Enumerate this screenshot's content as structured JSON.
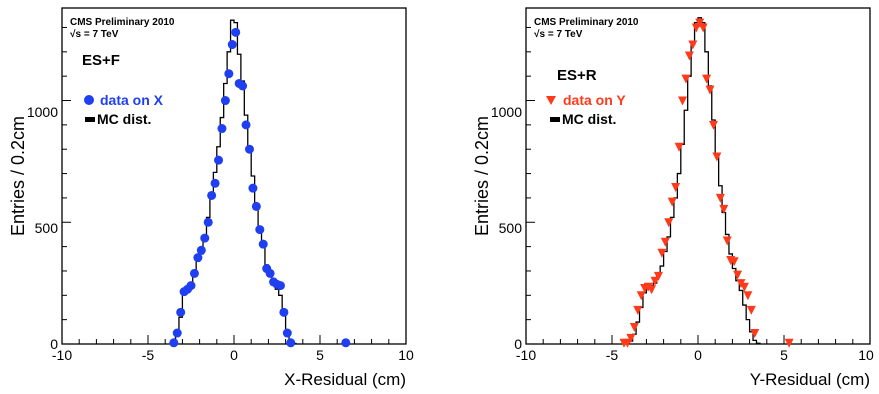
{
  "chart_data": [
    {
      "type": "scatter",
      "ylabel": "Entries / 0.2cm",
      "xlabel": "X-Residual (cm)",
      "xlim": [
        -10,
        10
      ],
      "ylim": [
        0,
        1380
      ],
      "x_ticks": [
        "-10",
        "-5",
        "0",
        "5",
        "10"
      ],
      "y_ticks": [
        "0",
        "500",
        "1000"
      ],
      "annotation_line1": "CMS Preliminary 2010",
      "annotation_line2": "√s = 7 TeV",
      "legend_title": "ES+F",
      "legend_placement": "top-left",
      "grid": false,
      "series": [
        {
          "name": "data on X",
          "kind": "markers",
          "marker": "circle",
          "color": "#1f3ff0",
          "x": [
            -3.5,
            -3.3,
            -3.1,
            -2.9,
            -2.7,
            -2.5,
            -2.3,
            -2.1,
            -1.9,
            -1.7,
            -1.5,
            -1.3,
            -1.1,
            -0.9,
            -0.7,
            -0.5,
            -0.3,
            -0.1,
            0.1,
            0.3,
            0.5,
            0.7,
            0.9,
            1.1,
            1.3,
            1.5,
            1.7,
            1.9,
            2.1,
            2.3,
            2.5,
            2.7,
            2.9,
            3.1,
            3.3,
            6.5
          ],
          "y": [
            5,
            45,
            130,
            215,
            225,
            240,
            290,
            355,
            385,
            435,
            500,
            610,
            660,
            755,
            885,
            1000,
            1110,
            1230,
            1280,
            1070,
            1060,
            900,
            800,
            640,
            565,
            470,
            410,
            310,
            290,
            255,
            245,
            240,
            130,
            45,
            5,
            5
          ]
        },
        {
          "name": "MC dist.",
          "kind": "step",
          "color": "#000000",
          "edges": [
            -3.6,
            -3.4,
            -3.2,
            -3.0,
            -2.8,
            -2.6,
            -2.4,
            -2.2,
            -2.0,
            -1.8,
            -1.6,
            -1.4,
            -1.2,
            -1.0,
            -0.8,
            -0.6,
            -0.4,
            -0.2,
            0.0,
            0.2,
            0.4,
            0.6,
            0.8,
            1.0,
            1.2,
            1.4,
            1.6,
            1.8,
            2.0,
            2.2,
            2.4,
            2.6,
            2.8,
            3.0,
            3.2,
            3.4,
            3.6
          ],
          "values": [
            5,
            40,
            110,
            205,
            215,
            240,
            285,
            340,
            370,
            430,
            520,
            610,
            705,
            810,
            930,
            1070,
            1200,
            1330,
            1320,
            1190,
            1080,
            940,
            810,
            690,
            575,
            480,
            400,
            325,
            280,
            250,
            225,
            200,
            120,
            45,
            10,
            2
          ]
        }
      ]
    },
    {
      "type": "scatter",
      "ylabel": "Entries / 0.2cm",
      "xlabel": "Y-Residual (cm)",
      "xlim": [
        -10,
        10
      ],
      "ylim": [
        0,
        1380
      ],
      "x_ticks": [
        "-10",
        "-5",
        "0",
        "5",
        "10"
      ],
      "y_ticks": [
        "0",
        "500",
        "1000"
      ],
      "annotation_line1": "CMS Preliminary 2010",
      "annotation_line2": "√s = 7 TeV",
      "legend_title": "ES+R",
      "legend_placement": "top-left",
      "grid": false,
      "series": [
        {
          "name": "data on Y",
          "kind": "markers",
          "marker": "triangle-down",
          "color": "#ff3a1a",
          "x": [
            -4.3,
            -4.1,
            -3.9,
            -3.7,
            -3.5,
            -3.3,
            -3.1,
            -2.9,
            -2.7,
            -2.5,
            -2.3,
            -2.1,
            -1.9,
            -1.7,
            -1.5,
            -1.3,
            -1.1,
            -0.9,
            -0.7,
            -0.5,
            -0.3,
            -0.1,
            0.1,
            0.3,
            0.5,
            0.7,
            0.9,
            1.1,
            1.3,
            1.5,
            1.7,
            1.9,
            2.1,
            2.3,
            2.5,
            2.7,
            2.9,
            3.1,
            3.3,
            5.3
          ],
          "y": [
            5,
            5,
            25,
            70,
            140,
            200,
            230,
            235,
            225,
            260,
            280,
            375,
            420,
            500,
            585,
            645,
            810,
            1000,
            1090,
            1185,
            1230,
            1300,
            1320,
            1300,
            1090,
            1045,
            900,
            770,
            600,
            555,
            425,
            345,
            340,
            285,
            250,
            235,
            200,
            140,
            45,
            5
          ]
        },
        {
          "name": "MC dist.",
          "kind": "step",
          "color": "#000000",
          "edges": [
            -4.2,
            -4.0,
            -3.8,
            -3.6,
            -3.4,
            -3.2,
            -3.0,
            -2.8,
            -2.6,
            -2.4,
            -2.2,
            -2.0,
            -1.8,
            -1.6,
            -1.4,
            -1.2,
            -1.0,
            -0.8,
            -0.6,
            -0.4,
            -0.2,
            0.0,
            0.2,
            0.4,
            0.6,
            0.8,
            1.0,
            1.2,
            1.4,
            1.6,
            1.8,
            2.0,
            2.2,
            2.4,
            2.6,
            2.8,
            3.0,
            3.2,
            3.4,
            3.6
          ],
          "values": [
            3,
            12,
            40,
            90,
            150,
            210,
            235,
            240,
            250,
            280,
            320,
            380,
            440,
            520,
            600,
            700,
            820,
            960,
            1100,
            1230,
            1320,
            1340,
            1320,
            1200,
            1060,
            920,
            780,
            650,
            540,
            450,
            370,
            310,
            260,
            220,
            160,
            100,
            50,
            15,
            3
          ]
        }
      ]
    }
  ]
}
